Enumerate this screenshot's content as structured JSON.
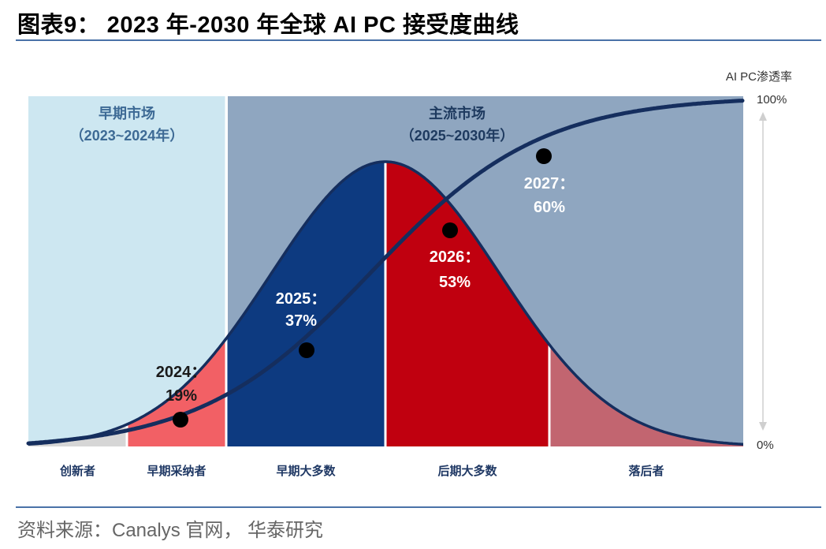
{
  "title": "图表9： 2023 年-2030 年全球 AI PC 接受度曲线",
  "source": "资料来源：Canalys 官网， 华泰研究",
  "colors": {
    "early_market_bg": "#cde7f1",
    "mainstream_bg": "#8fa6c0",
    "innovators": "#d6d6d6",
    "early_adopters": "#f26065",
    "early_majority": "#0d3a80",
    "late_majority": "#c0000f",
    "laggards": "#c26570",
    "curve": "#152e5e"
  },
  "chart_data": {
    "type": "area",
    "title": "2023 年-2030 年全球 AI PC 接受度曲线",
    "ylabel": "AI PC渗透率",
    "y_ticks": [
      "100%",
      "0%"
    ],
    "ylim": [
      0,
      100
    ],
    "markets": [
      {
        "name": "早期市场",
        "period": "（2023~2024年）"
      },
      {
        "name": "主流市场",
        "period": "（2025~2030年）"
      }
    ],
    "segments": [
      "创新者",
      "早期采纳者",
      "早期大多数",
      "后期大多数",
      "落后者"
    ],
    "points": [
      {
        "year": 2024,
        "label": "2024：",
        "value": 19,
        "value_label": "19%"
      },
      {
        "year": 2025,
        "label": "2025：",
        "value": 37,
        "value_label": "37%"
      },
      {
        "year": 2026,
        "label": "2026：",
        "value": 53,
        "value_label": "53%"
      },
      {
        "year": 2027,
        "label": "2027：",
        "value": 60,
        "value_label": "60%"
      }
    ]
  }
}
